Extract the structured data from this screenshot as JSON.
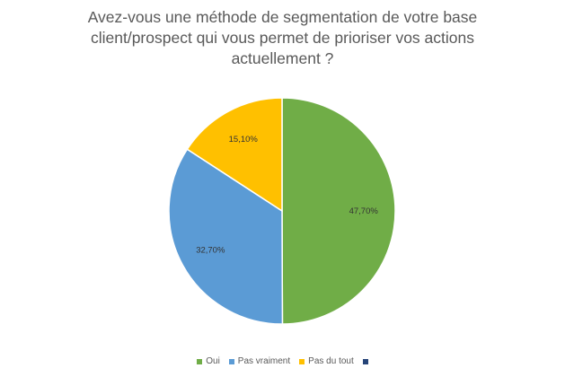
{
  "chart_data": {
    "type": "pie",
    "title_lines": [
      "Avez-vous une méthode de segmentation de votre base",
      "client/prospect qui vous permet de prioriser vos actions",
      "actuellement ?"
    ],
    "categories": [
      "Oui",
      "Pas vraiment",
      "Pas du tout",
      ""
    ],
    "values": [
      47.7,
      32.7,
      15.1,
      0
    ],
    "data_labels": [
      "47,70%",
      "32,70%",
      "15,10%",
      ""
    ],
    "colors": [
      "#70AD47",
      "#5B9BD5",
      "#FFC000",
      "#264478"
    ],
    "legend_position": "bottom"
  }
}
